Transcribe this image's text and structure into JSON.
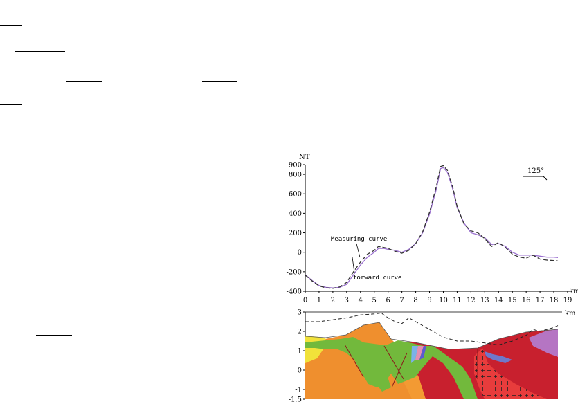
{
  "chart_data": [
    {
      "type": "line",
      "title": "",
      "ylabel": "NT",
      "xlabel": "km",
      "xlim": [
        0,
        19
      ],
      "ylim": [
        -400,
        900
      ],
      "x_ticks": [
        "0",
        "1",
        "2",
        "3",
        "4",
        "5",
        "6",
        "7",
        "8",
        "9",
        "10",
        "11",
        "12",
        "13",
        "14",
        "15",
        "16",
        "17",
        "18",
        "19"
      ],
      "y_ticks": [
        "-400",
        "-200",
        "0",
        "200",
        "400",
        "600",
        "800",
        "900"
      ],
      "grid": false,
      "orientation_label": "125°",
      "annotations": [
        "Measuring curve",
        "forward curve"
      ],
      "series": [
        {
          "name": "Measuring curve",
          "color": "#9a6fcf",
          "style": "solid",
          "points": [
            [
              0,
              -230
            ],
            [
              0.5,
              -290
            ],
            [
              1,
              -340
            ],
            [
              1.5,
              -360
            ],
            [
              2,
              -365
            ],
            [
              2.5,
              -360
            ],
            [
              3,
              -330
            ],
            [
              3.5,
              -230
            ],
            [
              4,
              -130
            ],
            [
              4.5,
              -50
            ],
            [
              5,
              0
            ],
            [
              5.3,
              40
            ],
            [
              5.7,
              40
            ],
            [
              6,
              30
            ],
            [
              6.5,
              20
            ],
            [
              7,
              0
            ],
            [
              7.5,
              30
            ],
            [
              8,
              90
            ],
            [
              8.5,
              200
            ],
            [
              9,
              390
            ],
            [
              9.5,
              650
            ],
            [
              9.8,
              860
            ],
            [
              10,
              870
            ],
            [
              10.3,
              820
            ],
            [
              10.7,
              640
            ],
            [
              11,
              460
            ],
            [
              11.5,
              300
            ],
            [
              12,
              200
            ],
            [
              12.5,
              180
            ],
            [
              13,
              150
            ],
            [
              13.5,
              80
            ],
            [
              14,
              90
            ],
            [
              14.5,
              60
            ],
            [
              15,
              0
            ],
            [
              15.5,
              -30
            ],
            [
              16,
              -30
            ],
            [
              16.5,
              -30
            ],
            [
              17,
              -40
            ],
            [
              17.5,
              -50
            ],
            [
              18,
              -50
            ],
            [
              18.3,
              -55
            ]
          ]
        },
        {
          "name": "forward curve",
          "color": "#333333",
          "style": "dashed",
          "points": [
            [
              0,
              -235
            ],
            [
              0.5,
              -295
            ],
            [
              1,
              -345
            ],
            [
              1.5,
              -365
            ],
            [
              2,
              -370
            ],
            [
              2.5,
              -355
            ],
            [
              3,
              -310
            ],
            [
              3.5,
              -200
            ],
            [
              4,
              -100
            ],
            [
              4.5,
              -20
            ],
            [
              5,
              20
            ],
            [
              5.3,
              60
            ],
            [
              5.7,
              50
            ],
            [
              6,
              40
            ],
            [
              6.5,
              10
            ],
            [
              7,
              -10
            ],
            [
              7.5,
              20
            ],
            [
              8,
              90
            ],
            [
              8.5,
              210
            ],
            [
              9,
              410
            ],
            [
              9.5,
              680
            ],
            [
              9.8,
              880
            ],
            [
              10,
              890
            ],
            [
              10.3,
              840
            ],
            [
              10.7,
              660
            ],
            [
              11,
              470
            ],
            [
              11.5,
              290
            ],
            [
              12,
              220
            ],
            [
              12.5,
              200
            ],
            [
              13,
              140
            ],
            [
              13.5,
              60
            ],
            [
              14,
              100
            ],
            [
              14.5,
              50
            ],
            [
              15,
              -20
            ],
            [
              15.5,
              -50
            ],
            [
              16,
              -60
            ],
            [
              16.5,
              -30
            ],
            [
              17,
              -70
            ],
            [
              17.5,
              -80
            ],
            [
              18,
              -85
            ],
            [
              18.3,
              -90
            ]
          ]
        }
      ]
    },
    {
      "type": "area",
      "title": "",
      "ylabel": "",
      "xlabel": "km",
      "ylim": [
        -1.5,
        3
      ],
      "y_ticks": [
        "3",
        "2",
        "1",
        "0",
        "-1",
        "-1.5"
      ],
      "x_range": [
        0,
        19
      ],
      "dashed_line": [
        [
          0,
          2.5
        ],
        [
          1,
          2.5
        ],
        [
          2,
          2.6
        ],
        [
          3,
          2.7
        ],
        [
          4,
          2.85
        ],
        [
          5,
          2.9
        ],
        [
          5.5,
          2.95
        ],
        [
          6,
          2.7
        ],
        [
          6.5,
          2.5
        ],
        [
          7,
          2.4
        ],
        [
          7.5,
          2.7
        ],
        [
          8,
          2.5
        ],
        [
          8.5,
          2.3
        ],
        [
          9,
          2.1
        ],
        [
          10,
          1.7
        ],
        [
          11,
          1.5
        ],
        [
          12,
          1.5
        ],
        [
          13,
          1.4
        ],
        [
          14,
          1.3
        ],
        [
          15,
          1.5
        ],
        [
          16,
          1.8
        ],
        [
          16.5,
          2.1
        ],
        [
          17,
          2.0
        ],
        [
          18,
          2.2
        ],
        [
          18.3,
          2.3
        ]
      ]
    }
  ]
}
